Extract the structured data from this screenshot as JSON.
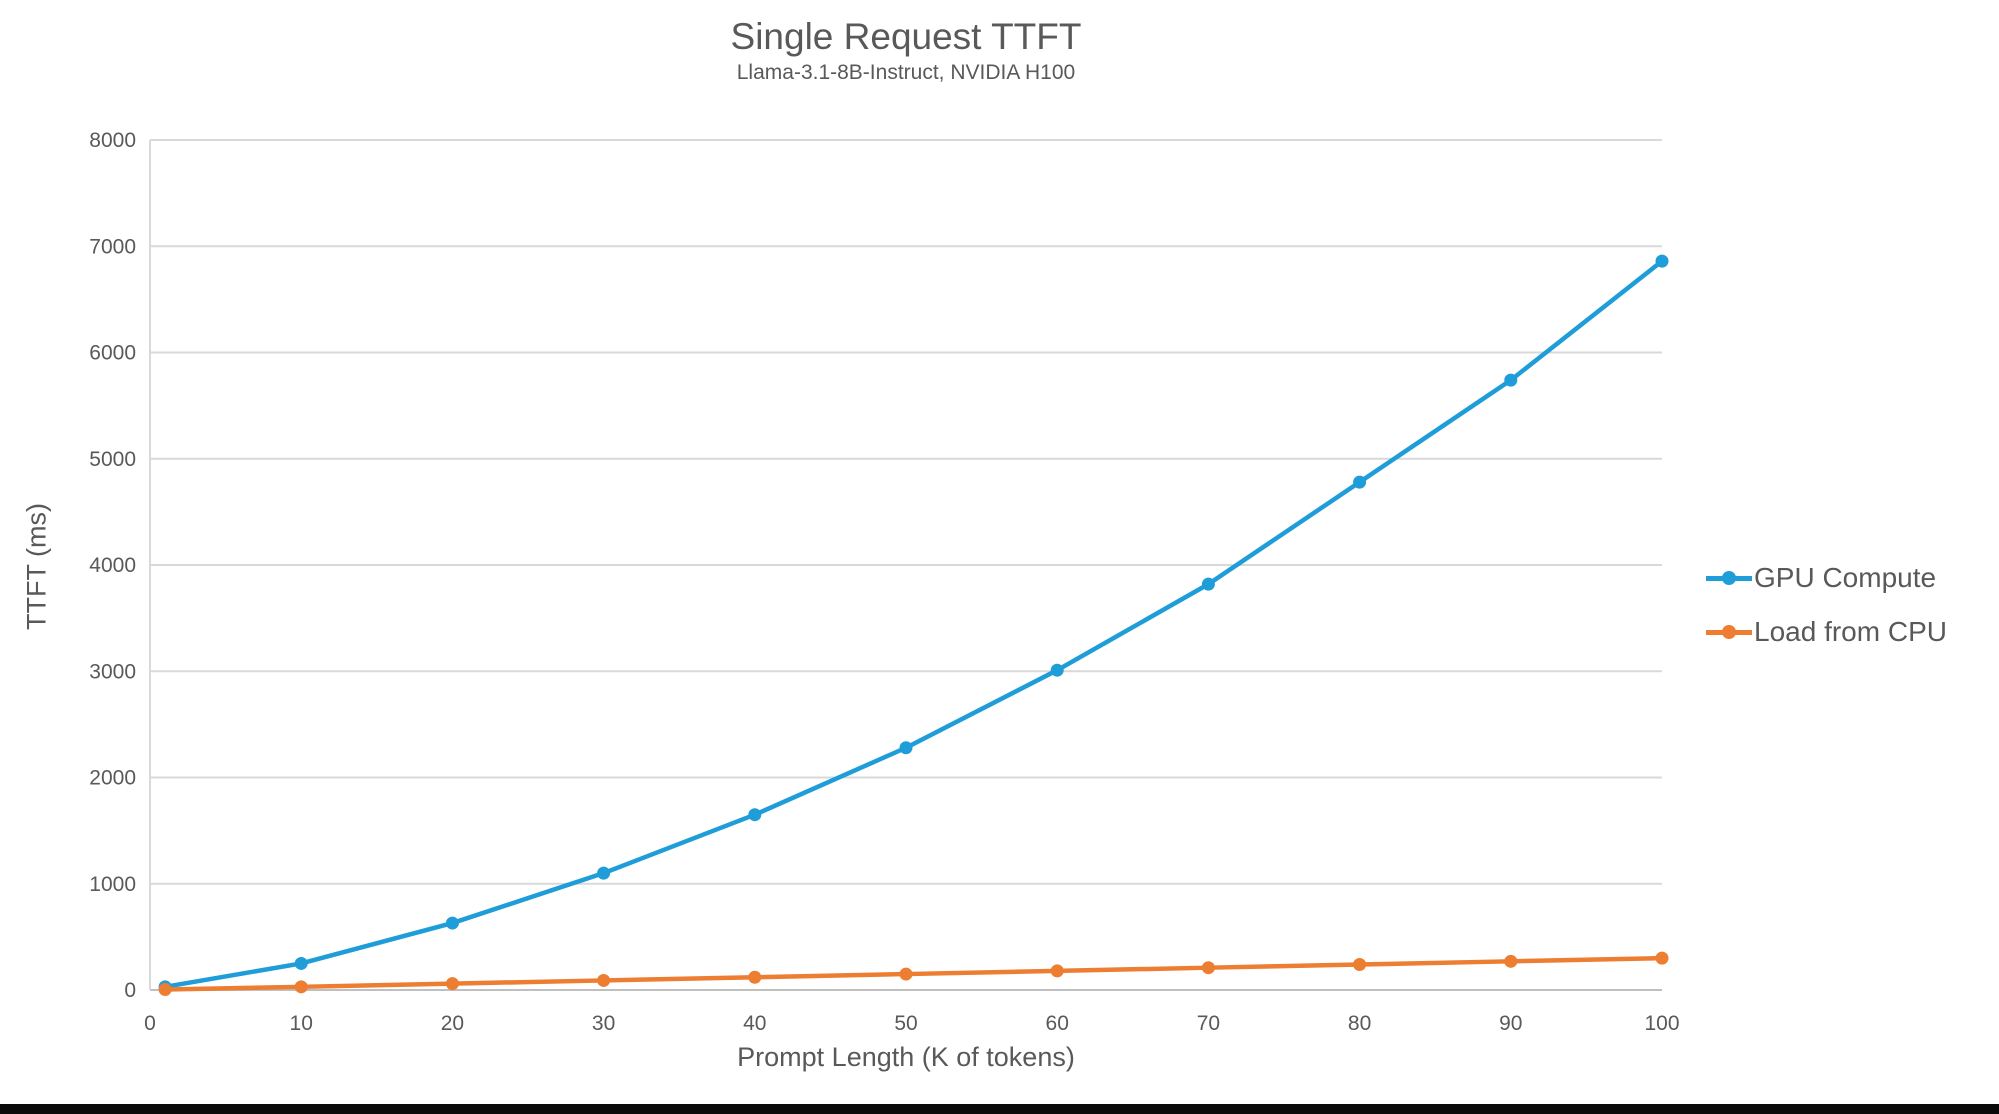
{
  "chart_data": {
    "type": "line",
    "title": "Single Request TTFT",
    "subtitle": "Llama-3.1-8B-Instruct, NVIDIA H100",
    "xlabel": "Prompt Length (K of tokens)",
    "ylabel": "TTFT (ms)",
    "x": [
      1,
      10,
      20,
      30,
      40,
      50,
      60,
      70,
      80,
      90,
      100
    ],
    "series": [
      {
        "name": "GPU Compute",
        "color": "#1F9DD9",
        "values": [
          30,
          250,
          630,
          1100,
          1650,
          2280,
          3010,
          3820,
          4780,
          5740,
          6860
        ]
      },
      {
        "name": "Load from CPU",
        "color": "#ED7D31",
        "values": [
          5,
          30,
          60,
          90,
          120,
          150,
          180,
          210,
          240,
          270,
          300
        ]
      }
    ],
    "xlim": [
      0,
      100
    ],
    "ylim": [
      0,
      8000
    ],
    "x_ticks": [
      0,
      10,
      20,
      30,
      40,
      50,
      60,
      70,
      80,
      90,
      100
    ],
    "y_ticks": [
      0,
      1000,
      2000,
      3000,
      4000,
      5000,
      6000,
      7000,
      8000
    ],
    "grid": "horizontal",
    "legend_position": "right"
  },
  "colors": {
    "text": "#595959",
    "gridline": "#D9D9D9",
    "axis_line": "#BFBFBF",
    "background": "#FFFFFF",
    "bottom_bar": "#0A0A0A"
  }
}
